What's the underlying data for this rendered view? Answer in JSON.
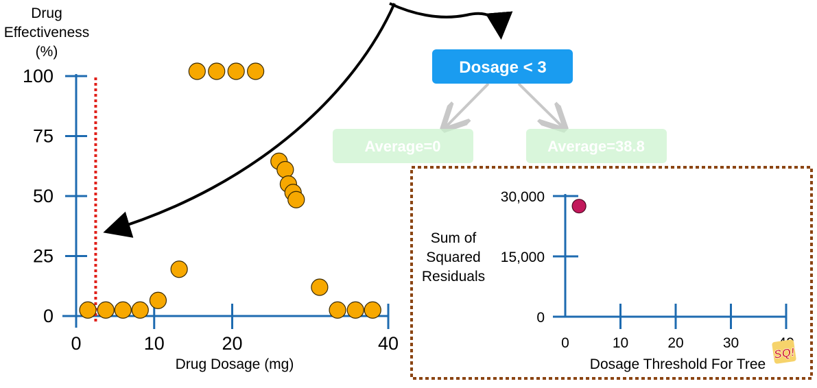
{
  "chart_data": [
    {
      "type": "scatter",
      "ylabel": [
        "Drug",
        "Effectiveness",
        "(%)"
      ],
      "xlabel": "Drug Dosage (mg)",
      "xlim": [
        0,
        40
      ],
      "ylim": [
        0,
        100
      ],
      "x_ticks": [
        "0",
        "10",
        "20",
        "40"
      ],
      "y_ticks": [
        "100",
        "75",
        "50",
        "25",
        "0"
      ],
      "threshold_line_x": 2.5,
      "point_color": "#f7a800",
      "axis_color": "#1e6bb0",
      "threshold_color": "#e0201a",
      "points": [
        {
          "x": 1.5,
          "y": 2.5
        },
        {
          "x": 3.8,
          "y": 2.5
        },
        {
          "x": 6.0,
          "y": 2.5
        },
        {
          "x": 8.2,
          "y": 2.5
        },
        {
          "x": 10.5,
          "y": 6.5
        },
        {
          "x": 13.2,
          "y": 19.5
        },
        {
          "x": 15.5,
          "y": 102
        },
        {
          "x": 18.0,
          "y": 102
        },
        {
          "x": 20.5,
          "y": 102
        },
        {
          "x": 23.0,
          "y": 102
        },
        {
          "x": 26.0,
          "y": 64.5
        },
        {
          "x": 26.8,
          "y": 61
        },
        {
          "x": 27.2,
          "y": 55
        },
        {
          "x": 27.8,
          "y": 51.5
        },
        {
          "x": 28.2,
          "y": 48.5
        },
        {
          "x": 31.2,
          "y": 12
        },
        {
          "x": 33.5,
          "y": 2.5
        },
        {
          "x": 35.8,
          "y": 2.5
        },
        {
          "x": 38.0,
          "y": 2.5
        }
      ]
    },
    {
      "type": "scatter",
      "ylabel": [
        "Sum of",
        "Squared",
        "Residuals"
      ],
      "xlabel": "Dosage Threshold For Tree",
      "xlim": [
        0,
        40
      ],
      "ylim": [
        0,
        30000
      ],
      "x_ticks": [
        "0",
        "10",
        "20",
        "30",
        "40"
      ],
      "y_ticks": [
        "30,000",
        "15,000",
        "0"
      ],
      "point_color": "#c2185b",
      "points": [
        {
          "x": 2.5,
          "y": 27500
        }
      ]
    }
  ],
  "tree": {
    "root": "Dosage < 3",
    "left_leaf": "Average=0",
    "right_leaf": "Average=38.8",
    "root_color": "#1a9cf0",
    "leaf_color": "#c9f2cc",
    "inset_border_color": "#8b4513"
  },
  "watermark": "SQ!"
}
